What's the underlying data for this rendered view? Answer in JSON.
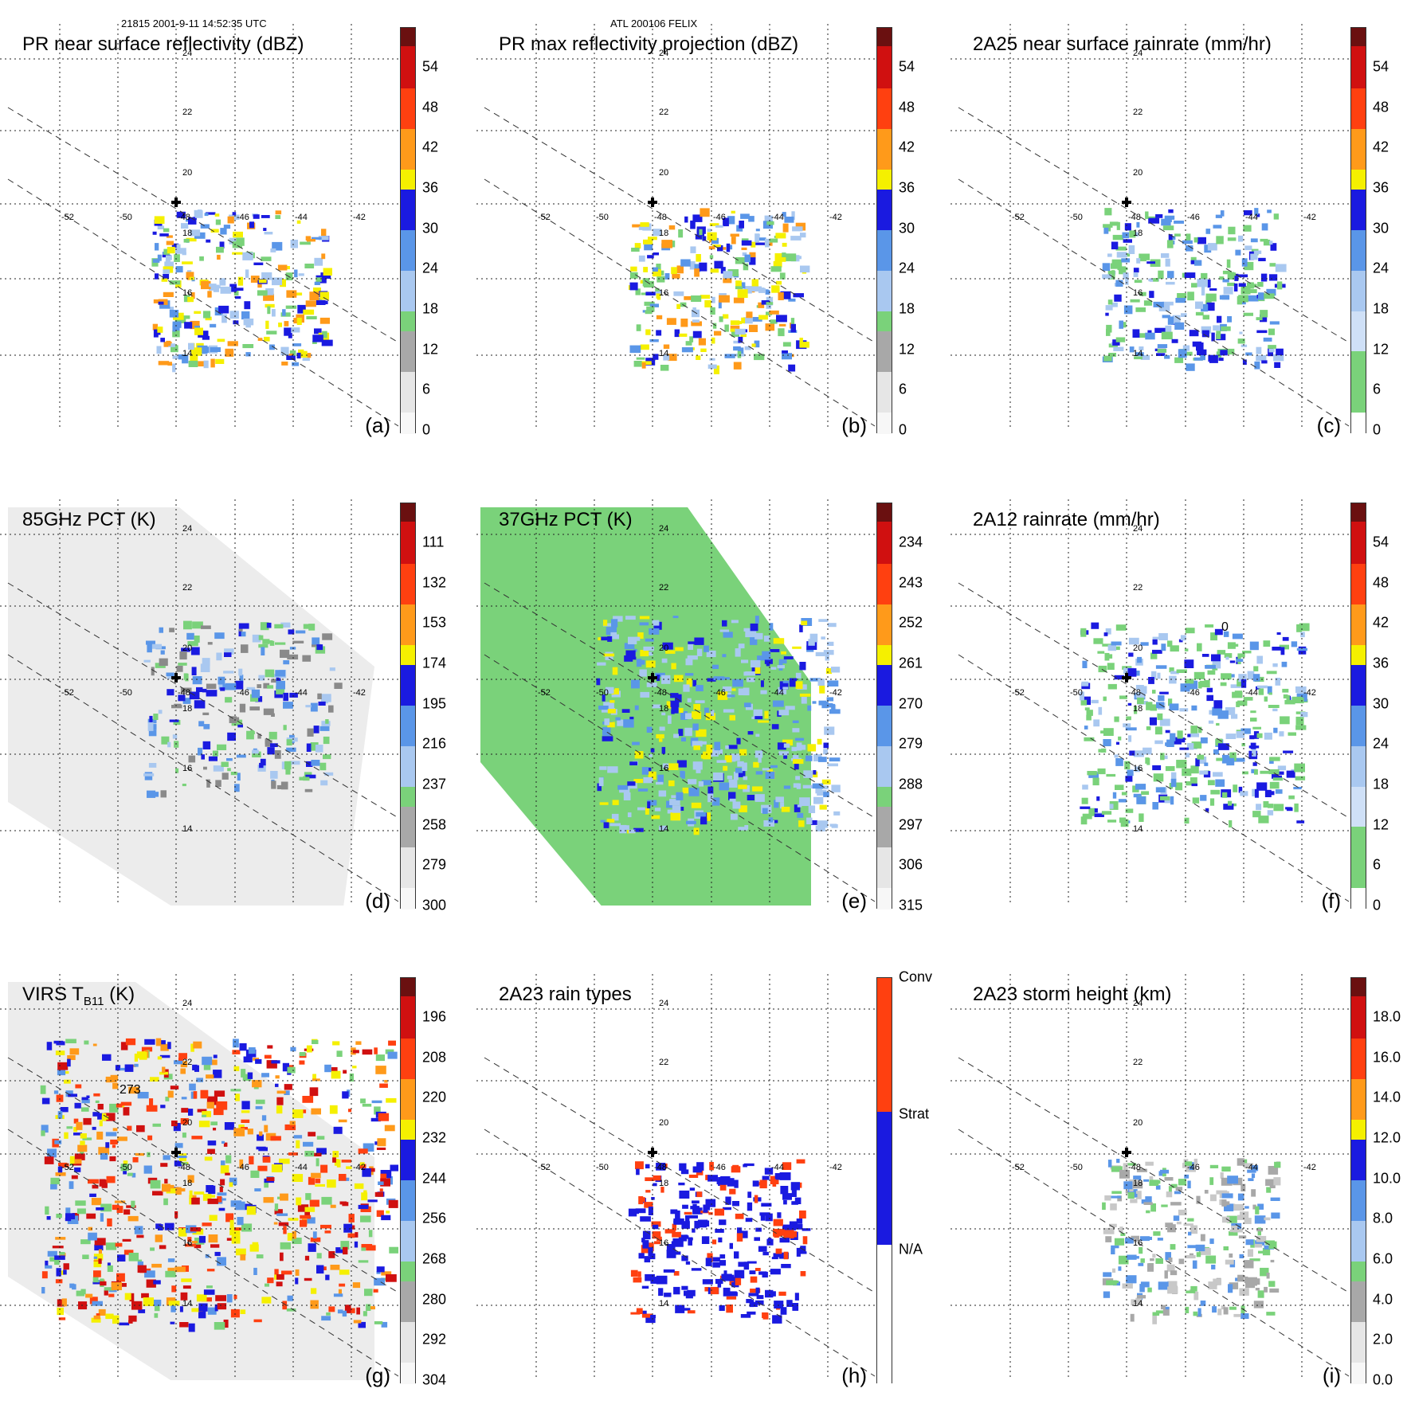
{
  "header": {
    "left": "21815 2001-9-11 14:52:35 UTC",
    "center": "ATL 200106 FELIX"
  },
  "colors": {
    "green": "#7ad27a",
    "lightblue": "#a9c8f0",
    "midblue": "#5a96e8",
    "blue": "#1a1ae0",
    "yellow": "#f5f000",
    "orange": "#ff9a1a",
    "redorange": "#ff4010",
    "red": "#d01010",
    "darkred": "#6a1010",
    "gray": "#a8a8a8",
    "lightgray": "#e6e6e6"
  },
  "axes": {
    "longitudes": [
      "-52",
      "-50",
      "-48",
      "-46",
      "-44",
      "-42"
    ],
    "latitudes": [
      "24",
      "22",
      "20",
      "18",
      "16",
      "14"
    ]
  },
  "panels": [
    {
      "id": "a",
      "title": "PR near surface reflectivity (dBZ)",
      "label": "(a)",
      "ticks": [
        "54",
        "48",
        "42",
        "36",
        "30",
        "24",
        "18",
        "12",
        "6",
        "0"
      ]
    },
    {
      "id": "b",
      "title": "PR max reflectivity projection (dBZ)",
      "label": "(b)",
      "ticks": [
        "54",
        "48",
        "42",
        "36",
        "30",
        "24",
        "18",
        "12",
        "6",
        "0"
      ]
    },
    {
      "id": "c",
      "title": "2A25 near surface rainrate (mm/hr)",
      "label": "(c)",
      "ticks": [
        "54",
        "48",
        "42",
        "36",
        "30",
        "24",
        "18",
        "12",
        "6",
        "0"
      ]
    },
    {
      "id": "d",
      "title": "85GHz PCT (K)",
      "label": "(d)",
      "ticks": [
        "111",
        "132",
        "153",
        "174",
        "195",
        "216",
        "237",
        "258",
        "279",
        "300"
      ]
    },
    {
      "id": "e",
      "title": "37GHz PCT (K)",
      "label": "(e)",
      "ticks": [
        "234",
        "243",
        "252",
        "261",
        "270",
        "279",
        "288",
        "297",
        "306",
        "315"
      ]
    },
    {
      "id": "f",
      "title": "2A12 rainrate (mm/hr)",
      "label": "(f)",
      "ticks": [
        "54",
        "48",
        "42",
        "36",
        "30",
        "24",
        "18",
        "12",
        "6",
        "0"
      ],
      "contour_label": "0"
    },
    {
      "id": "g",
      "title_main": "VIRS T",
      "title_sub": "B11",
      "title_unit": " (K)",
      "label": "(g)",
      "ticks": [
        "196",
        "208",
        "220",
        "232",
        "244",
        "256",
        "268",
        "280",
        "292",
        "304"
      ],
      "contour_label": "273"
    },
    {
      "id": "h",
      "title": "2A23 rain types",
      "label": "(h)",
      "ticks": [
        "Conv",
        "Strat",
        "N/A"
      ]
    },
    {
      "id": "i",
      "title": "2A23 storm height (km)",
      "label": "(i)",
      "ticks": [
        "18.0",
        "16.0",
        "14.0",
        "12.0",
        "10.0",
        "8.0",
        "6.0",
        "4.0",
        "2.0",
        "0.0"
      ]
    }
  ]
}
